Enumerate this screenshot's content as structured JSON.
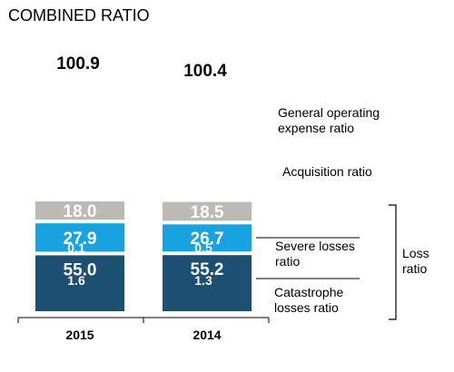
{
  "chart_data": {
    "type": "bar",
    "stacked": true,
    "title": "COMBINED RATIO",
    "categories": [
      "2015",
      "2014"
    ],
    "totals": [
      "100.9",
      "100.4"
    ],
    "series": [
      {
        "name": "Loss ratio",
        "values": [
          55.0,
          55.2
        ],
        "labels": [
          "55.0",
          "55.2"
        ],
        "color": "#1c4f72"
      },
      {
        "name": "Acquisition ratio",
        "values": [
          27.9,
          26.7
        ],
        "labels": [
          "27.9",
          "26.7"
        ],
        "color": "#18a3e0"
      },
      {
        "name": "General operating expense ratio",
        "values": [
          18.0,
          18.5
        ],
        "labels": [
          "18.0",
          "18.5"
        ],
        "color": "#bdbab5"
      }
    ],
    "loss_components": [
      {
        "name": "Severe losses ratio",
        "values": [
          0.1,
          0.5
        ],
        "labels": [
          "0.1",
          "0.5"
        ]
      },
      {
        "name": "Catastrophe losses ratio",
        "values": [
          1.6,
          1.3
        ],
        "labels": [
          "1.6",
          "1.3"
        ]
      }
    ],
    "annotations": {
      "general_operating": [
        "General operating",
        "expense ratio"
      ],
      "acquisition": [
        "Acquisition ratio"
      ],
      "severe": [
        "Severe losses",
        "ratio"
      ],
      "catastrophe": [
        "Catastrophe",
        "losses ratio"
      ],
      "loss": [
        "Loss",
        "ratio"
      ]
    },
    "axis_color": "#000000",
    "grid": false,
    "legend": "right"
  }
}
